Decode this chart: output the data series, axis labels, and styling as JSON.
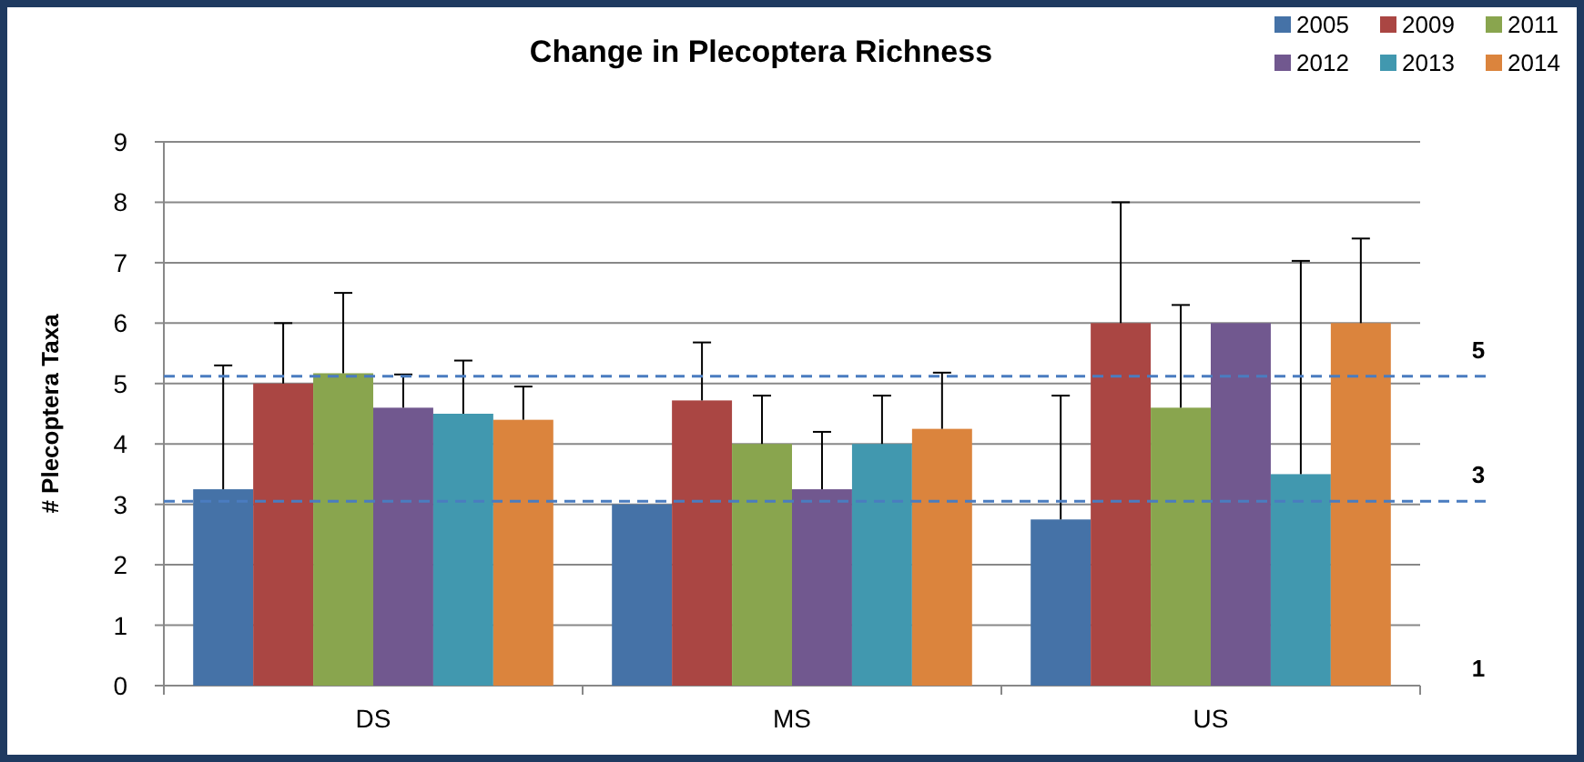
{
  "chart_data": {
    "type": "bar",
    "title": "Change in Plecoptera Richness",
    "ylabel": "# Plecoptera Taxa",
    "categories": [
      "DS",
      "MS",
      "US"
    ],
    "series": [
      {
        "name": "2005",
        "color": "#4572a7",
        "values": [
          3.25,
          3.0,
          2.75
        ],
        "errors": [
          [
            3.25,
            5.3
          ],
          null,
          [
            2.75,
            4.8
          ]
        ]
      },
      {
        "name": "2009",
        "color": "#aa4643",
        "values": [
          5.0,
          4.72,
          6.0
        ],
        "errors": [
          [
            5.0,
            6.0
          ],
          [
            4.72,
            5.68
          ],
          [
            6.0,
            8.0
          ]
        ]
      },
      {
        "name": "2011",
        "color": "#89a54e",
        "values": [
          5.17,
          4.0,
          4.6
        ],
        "errors": [
          [
            5.17,
            6.5
          ],
          [
            4.0,
            4.8
          ],
          [
            4.6,
            6.3
          ]
        ]
      },
      {
        "name": "2012",
        "color": "#71588f",
        "values": [
          4.6,
          3.25,
          6.0
        ],
        "errors": [
          [
            4.6,
            5.15
          ],
          [
            3.25,
            4.2
          ],
          null
        ]
      },
      {
        "name": "2013",
        "color": "#4198af",
        "values": [
          4.5,
          4.0,
          3.5
        ],
        "errors": [
          [
            4.5,
            5.38
          ],
          [
            4.0,
            4.8
          ],
          [
            3.5,
            7.03
          ]
        ]
      },
      {
        "name": "2014",
        "color": "#db843d",
        "values": [
          4.4,
          4.25,
          6.0
        ],
        "errors": [
          [
            4.4,
            4.95
          ],
          [
            4.25,
            5.18
          ],
          [
            6.0,
            7.4
          ]
        ]
      }
    ],
    "ylim": [
      0,
      9
    ],
    "yticks": [
      0,
      1,
      2,
      3,
      4,
      5,
      6,
      7,
      8,
      9
    ],
    "grid": "y",
    "legend": "top right",
    "ref_lines": [
      {
        "axis": "y",
        "value": 5.12,
        "label": "5",
        "color": "#4a7cc0",
        "line_style": "dashed"
      },
      {
        "axis": "y",
        "value": 3.05,
        "label": "3",
        "color": "#4a7cc0",
        "line_style": "dashed"
      }
    ],
    "annotations": [
      "1"
    ]
  }
}
